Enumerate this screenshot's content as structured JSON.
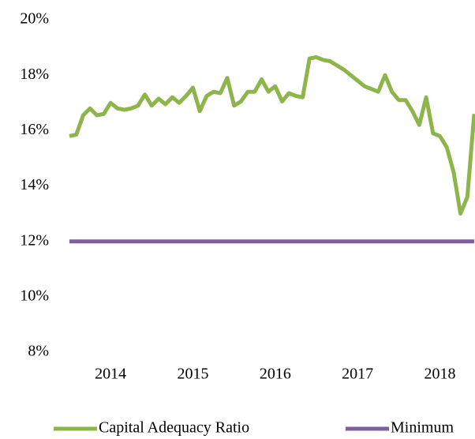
{
  "chart_data": {
    "type": "line",
    "categories": [
      null,
      null,
      null,
      null,
      null,
      null,
      "2014",
      null,
      null,
      null,
      null,
      null,
      null,
      null,
      null,
      null,
      null,
      null,
      "2015",
      null,
      null,
      null,
      null,
      null,
      null,
      null,
      null,
      null,
      null,
      null,
      "2016",
      null,
      null,
      null,
      null,
      null,
      null,
      null,
      null,
      null,
      null,
      null,
      "2017",
      null,
      null,
      null,
      null,
      null,
      null,
      null,
      null,
      null,
      null,
      null,
      "2018",
      null,
      null,
      null,
      null,
      null
    ],
    "series": [
      {
        "name": "Capital Adequacy Ratio",
        "color": "#8db54b",
        "values": [
          15.8,
          15.85,
          16.55,
          16.8,
          16.55,
          16.6,
          17.0,
          16.8,
          16.75,
          16.8,
          16.9,
          17.3,
          16.9,
          17.15,
          16.95,
          17.2,
          17.0,
          17.25,
          17.55,
          16.7,
          17.25,
          17.4,
          17.35,
          17.9,
          16.9,
          17.05,
          17.4,
          17.4,
          17.85,
          17.4,
          17.6,
          17.05,
          17.35,
          17.25,
          17.2,
          18.6,
          18.65,
          18.55,
          18.5,
          18.35,
          18.2,
          18.0,
          17.8,
          17.6,
          17.5,
          17.4,
          18.0,
          17.4,
          17.1,
          17.1,
          16.7,
          16.2,
          17.2,
          15.9,
          15.8,
          15.4,
          14.5,
          13.0,
          13.6,
          16.6
        ]
      },
      {
        "name": "Minimum",
        "color": "#7f5fa0",
        "values": [
          12,
          12,
          12,
          12,
          12,
          12,
          12,
          12,
          12,
          12,
          12,
          12,
          12,
          12,
          12,
          12,
          12,
          12,
          12,
          12,
          12,
          12,
          12,
          12,
          12,
          12,
          12,
          12,
          12,
          12,
          12,
          12,
          12,
          12,
          12,
          12,
          12,
          12,
          12,
          12,
          12,
          12,
          12,
          12,
          12,
          12,
          12,
          12,
          12,
          12,
          12,
          12,
          12,
          12,
          12,
          12,
          12,
          12,
          12,
          12
        ]
      }
    ],
    "ylim": [
      8,
      20
    ],
    "yticks": [
      {
        "value": 8,
        "label": "8%"
      },
      {
        "value": 10,
        "label": "10%"
      },
      {
        "value": 12,
        "label": "12%"
      },
      {
        "value": 14,
        "label": "14%"
      },
      {
        "value": 16,
        "label": "16%"
      },
      {
        "value": 18,
        "label": "18%"
      },
      {
        "value": 20,
        "label": "20%"
      }
    ],
    "legend": "bottom"
  }
}
